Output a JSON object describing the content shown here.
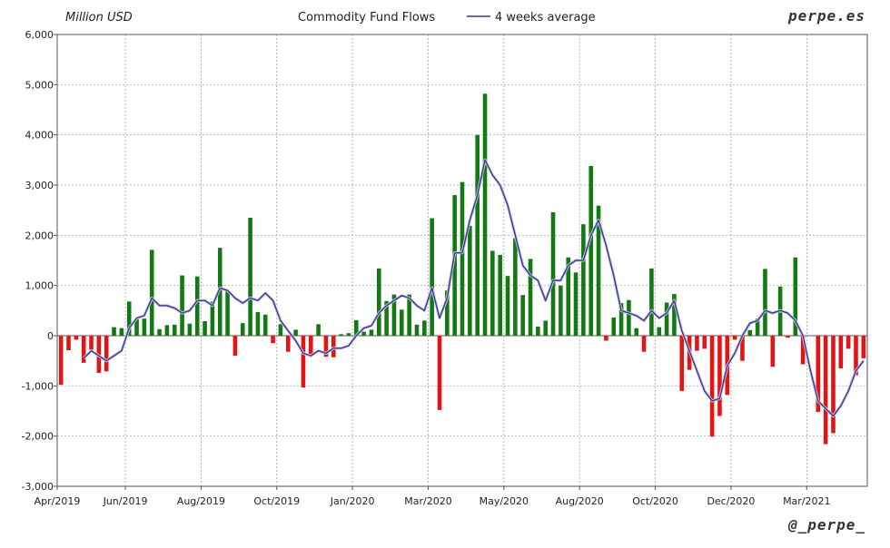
{
  "header": {
    "unit": "Million USD",
    "title": "Commodity Fund Flows",
    "legend": "4 weeks average",
    "brand": "perpe.es"
  },
  "footer": {
    "handle": "@_perpe_"
  },
  "colors": {
    "positive": "#137a13",
    "negative": "#e31414",
    "average": "#3a3a8c",
    "grid": "#9a9a9a",
    "axis": "#555555"
  },
  "chart_data": {
    "type": "bar",
    "title": "Commodity Fund Flows",
    "ylabel": "Million USD",
    "ylim": [
      -3000,
      6000
    ],
    "yticks": [
      -3000,
      -2000,
      -1000,
      0,
      1000,
      2000,
      3000,
      4000,
      5000,
      6000
    ],
    "ytick_labels": [
      "-3,000",
      "-2,000",
      "-1,000",
      "0",
      "1,000",
      "2,000",
      "3,000",
      "4,000",
      "5,000",
      "6,000"
    ],
    "xtick_labels": [
      "Apr/2019",
      "Jun/2019",
      "Aug/2019",
      "Oct/2019",
      "Jan/2020",
      "Mar/2020",
      "May/2020",
      "Aug/2020",
      "Oct/2020",
      "Dec/2020",
      "Mar/2021"
    ],
    "xtick_weeks": [
      0,
      9,
      19,
      29,
      39,
      49,
      59,
      69,
      79,
      89,
      99
    ],
    "grid": true,
    "legend_position": "top",
    "series": [
      {
        "name": "Commodity Fund Flows",
        "kind": "bar",
        "values": [
          -980,
          -290,
          -80,
          -540,
          -280,
          -740,
          -710,
          170,
          150,
          680,
          330,
          340,
          1710,
          130,
          210,
          220,
          1200,
          240,
          1180,
          290,
          680,
          1750,
          910,
          -400,
          250,
          2350,
          470,
          420,
          -150,
          230,
          -320,
          120,
          -1030,
          -380,
          230,
          -420,
          -430,
          30,
          50,
          310,
          80,
          120,
          1340,
          690,
          820,
          520,
          820,
          220,
          300,
          2340,
          -1480,
          900,
          2800,
          3060,
          2190,
          4000,
          4820,
          1690,
          1610,
          1190,
          1940,
          810,
          1530,
          180,
          300,
          2460,
          1000,
          1560,
          1260,
          2220,
          3380,
          2590,
          -100,
          360,
          650,
          710,
          150,
          -320,
          1340,
          170,
          660,
          830,
          -1100,
          -680,
          -300,
          -260,
          -2010,
          -1600,
          -1180,
          -80,
          -500,
          110,
          340,
          1330,
          -620,
          980,
          -40,
          1560,
          -570,
          0,
          -1520,
          -2160,
          -1940,
          -650,
          -260,
          -790,
          -450
        ]
      },
      {
        "name": "4 weeks average",
        "kind": "line",
        "values": [
          null,
          null,
          null,
          -450,
          -300,
          -400,
          -500,
          -400,
          -300,
          150,
          350,
          400,
          750,
          600,
          600,
          550,
          450,
          500,
          700,
          700,
          600,
          950,
          900,
          750,
          650,
          750,
          700,
          850,
          700,
          300,
          100,
          -100,
          -350,
          -400,
          -300,
          -350,
          -250,
          -250,
          -200,
          0,
          150,
          200,
          450,
          600,
          700,
          800,
          750,
          600,
          500,
          950,
          350,
          750,
          1650,
          1650,
          2300,
          2800,
          3500,
          3200,
          3000,
          2600,
          2000,
          1400,
          1200,
          1100,
          700,
          1100,
          1100,
          1400,
          1500,
          1500,
          2000,
          2300,
          1800,
          1200,
          500,
          450,
          400,
          300,
          500,
          350,
          450,
          700,
          100,
          -300,
          -700,
          -1100,
          -1300,
          -1250,
          -600,
          -350,
          0,
          250,
          300,
          500,
          450,
          500,
          450,
          300,
          0,
          -700,
          -1300,
          -1450,
          -1600,
          -1400,
          -1100,
          -700,
          -500
        ]
      }
    ]
  }
}
